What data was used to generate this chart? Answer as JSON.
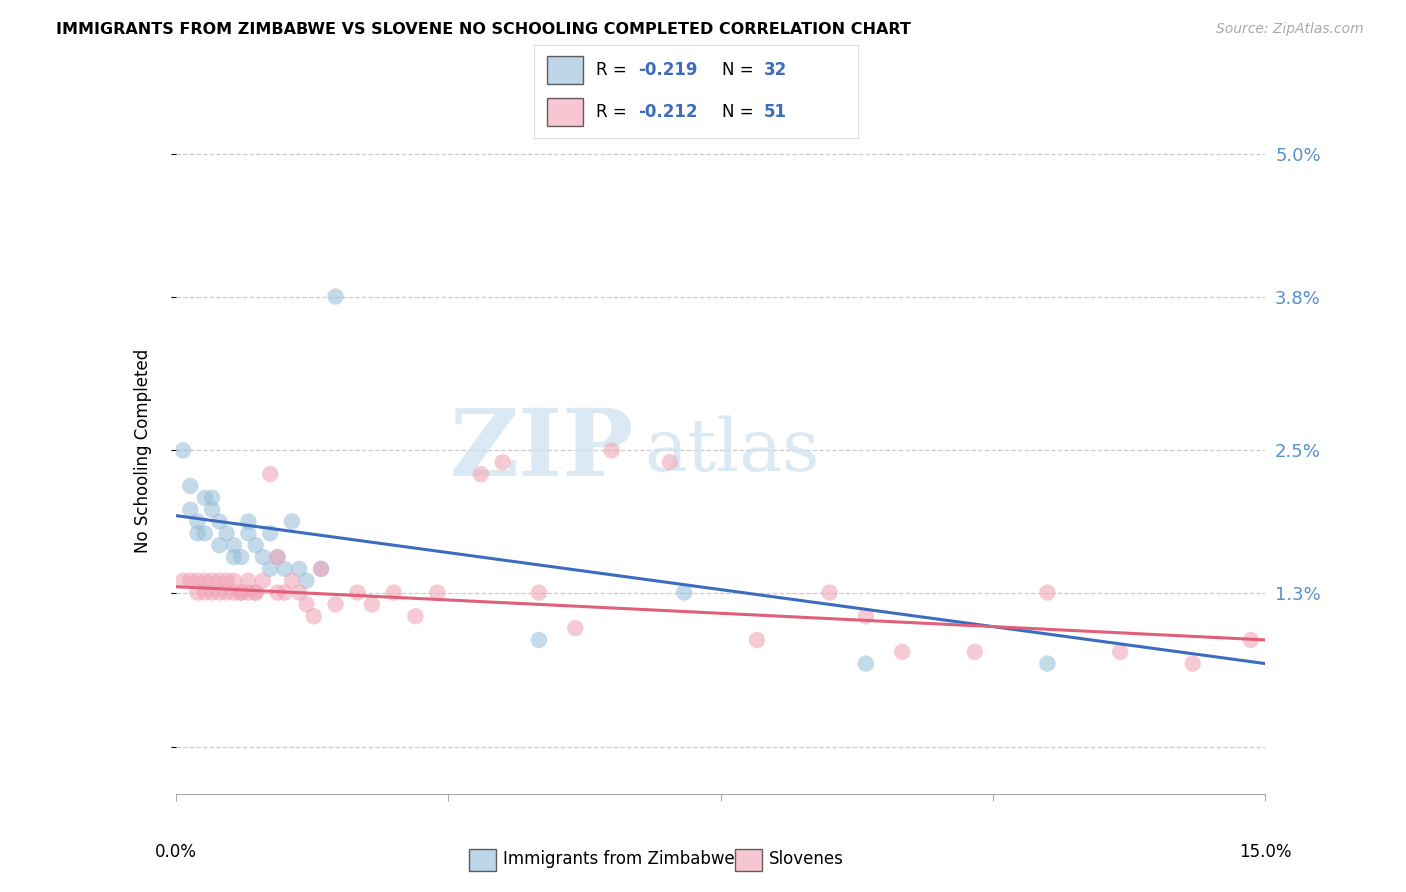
{
  "title": "IMMIGRANTS FROM ZIMBABWE VS SLOVENE NO SCHOOLING COMPLETED CORRELATION CHART",
  "source": "Source: ZipAtlas.com",
  "ylabel": "No Schooling Completed",
  "xmin": 0.0,
  "xmax": 0.15,
  "ymin": -0.004,
  "ymax": 0.054,
  "yticks": [
    0.0,
    0.013,
    0.025,
    0.038,
    0.05
  ],
  "yticklabels_right": [
    "",
    "1.3%",
    "2.5%",
    "3.8%",
    "5.0%"
  ],
  "blue_scatter_x": [
    0.001,
    0.002,
    0.002,
    0.003,
    0.003,
    0.004,
    0.004,
    0.005,
    0.005,
    0.006,
    0.006,
    0.007,
    0.008,
    0.008,
    0.009,
    0.01,
    0.01,
    0.011,
    0.012,
    0.013,
    0.013,
    0.014,
    0.015,
    0.016,
    0.017,
    0.018,
    0.02,
    0.022,
    0.05,
    0.07,
    0.095,
    0.12
  ],
  "blue_scatter_y": [
    0.025,
    0.022,
    0.02,
    0.019,
    0.018,
    0.021,
    0.018,
    0.021,
    0.02,
    0.019,
    0.017,
    0.018,
    0.017,
    0.016,
    0.016,
    0.019,
    0.018,
    0.017,
    0.016,
    0.018,
    0.015,
    0.016,
    0.015,
    0.019,
    0.015,
    0.014,
    0.015,
    0.038,
    0.009,
    0.013,
    0.007,
    0.007
  ],
  "pink_scatter_x": [
    0.001,
    0.002,
    0.003,
    0.003,
    0.004,
    0.004,
    0.005,
    0.005,
    0.006,
    0.006,
    0.007,
    0.007,
    0.008,
    0.008,
    0.009,
    0.009,
    0.01,
    0.01,
    0.011,
    0.011,
    0.012,
    0.013,
    0.014,
    0.014,
    0.015,
    0.016,
    0.017,
    0.018,
    0.019,
    0.02,
    0.022,
    0.025,
    0.027,
    0.03,
    0.033,
    0.036,
    0.042,
    0.045,
    0.05,
    0.055,
    0.06,
    0.068,
    0.08,
    0.09,
    0.095,
    0.1,
    0.11,
    0.12,
    0.13,
    0.14,
    0.148
  ],
  "pink_scatter_y": [
    0.014,
    0.014,
    0.014,
    0.013,
    0.014,
    0.013,
    0.014,
    0.013,
    0.013,
    0.014,
    0.014,
    0.013,
    0.014,
    0.013,
    0.013,
    0.013,
    0.013,
    0.014,
    0.013,
    0.013,
    0.014,
    0.023,
    0.016,
    0.013,
    0.013,
    0.014,
    0.013,
    0.012,
    0.011,
    0.015,
    0.012,
    0.013,
    0.012,
    0.013,
    0.011,
    0.013,
    0.023,
    0.024,
    0.013,
    0.01,
    0.025,
    0.024,
    0.009,
    0.013,
    0.011,
    0.008,
    0.008,
    0.013,
    0.008,
    0.007,
    0.009
  ],
  "blue_line_x": [
    0.0,
    0.15
  ],
  "blue_line_y": [
    0.0195,
    0.007
  ],
  "pink_line_x": [
    0.0,
    0.15
  ],
  "pink_line_y": [
    0.0135,
    0.009
  ],
  "blue_color": "#94bcd8",
  "pink_color": "#f0a0b4",
  "blue_line_color": "#3c6cbe",
  "pink_line_color": "#e0607a",
  "watermark_zip": "ZIP",
  "watermark_atlas": "atlas",
  "background_color": "#ffffff",
  "grid_color": "#cccccc"
}
